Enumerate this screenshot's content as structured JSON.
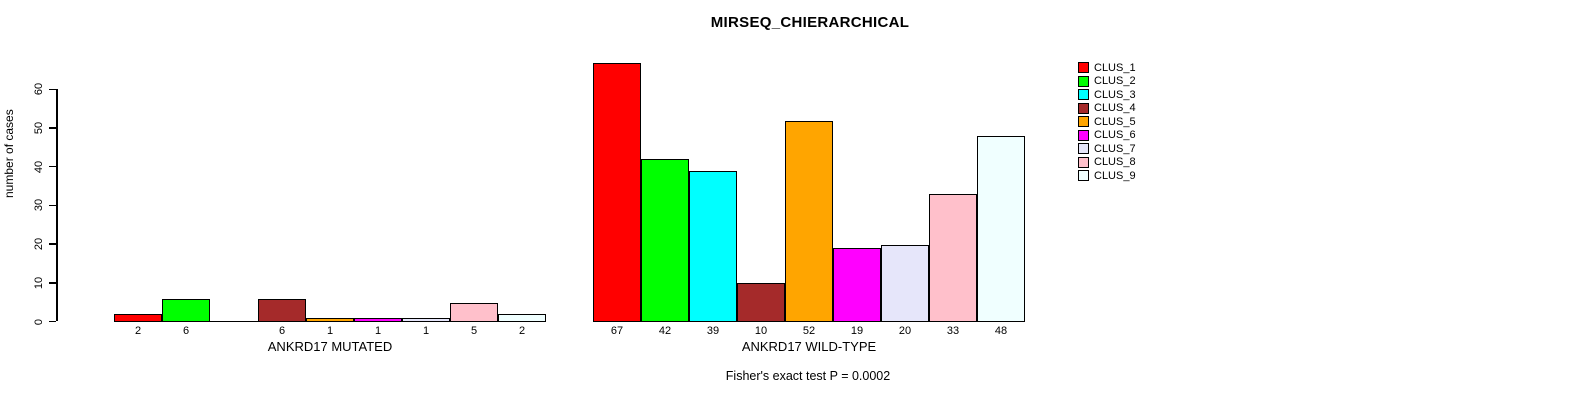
{
  "chart_data": {
    "type": "bar",
    "title": "MIRSEQ_CHIERARCHICAL",
    "ylabel": "number of cases",
    "annotation": "Fisher's exact test P = 0.0002",
    "ylim": [
      0,
      60
    ],
    "yticks": [
      0,
      10,
      20,
      30,
      40,
      50,
      60
    ],
    "grid": false,
    "legend_position": "right-outside",
    "legend": [
      {
        "name": "CLUS_1",
        "color": "#FF0000"
      },
      {
        "name": "CLUS_2",
        "color": "#00FF00"
      },
      {
        "name": "CLUS_3",
        "color": "#00FFFF"
      },
      {
        "name": "CLUS_4",
        "color": "#A52A2A"
      },
      {
        "name": "CLUS_5",
        "color": "#FFA500"
      },
      {
        "name": "CLUS_6",
        "color": "#FF00FF"
      },
      {
        "name": "CLUS_7",
        "color": "#E6E6FA"
      },
      {
        "name": "CLUS_8",
        "color": "#FFC0CB"
      },
      {
        "name": "CLUS_9",
        "color": "#F0FFFF"
      }
    ],
    "groups": [
      {
        "label": "ANKRD17 MUTATED",
        "values": [
          2,
          6,
          0,
          6,
          1,
          1,
          1,
          5,
          2
        ]
      },
      {
        "label": "ANKRD17 WILD-TYPE",
        "values": [
          67,
          42,
          39,
          10,
          52,
          19,
          20,
          33,
          48
        ]
      }
    ],
    "zero_bars_unlabeled": true,
    "axis_color": "#000000",
    "background_color": "#FFFFFF"
  }
}
